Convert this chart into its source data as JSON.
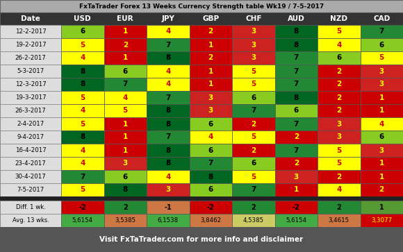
{
  "title": "FxTaTrader Forex 13 Weeks Currency Strength table Wk19 / 7-5-2017",
  "footer": "Visit FxTaTrader.com for more info and disclaimer",
  "columns": [
    "Date",
    "USD",
    "EUR",
    "JPY",
    "GBP",
    "CHF",
    "AUD",
    "NZD",
    "CAD"
  ],
  "dates": [
    "12-2-2017",
    "19-2-2017",
    "26-2-2017",
    "5-3-2017",
    "12-3-2017",
    "19-3-2017",
    "26-3-2017",
    "2-4-2017",
    "9-4-2017",
    "16-4-2017",
    "23-4-2017",
    "30-4-2017",
    "7-5-2017"
  ],
  "values": [
    [
      6,
      1,
      4,
      2,
      3,
      8,
      5,
      7
    ],
    [
      5,
      2,
      7,
      1,
      3,
      8,
      4,
      6
    ],
    [
      4,
      1,
      8,
      2,
      3,
      7,
      6,
      5
    ],
    [
      8,
      6,
      4,
      1,
      5,
      7,
      2,
      3
    ],
    [
      8,
      7,
      4,
      1,
      5,
      7,
      2,
      3
    ],
    [
      5,
      4,
      7,
      3,
      6,
      8,
      2,
      1
    ],
    [
      4,
      5,
      8,
      3,
      7,
      6,
      2,
      1
    ],
    [
      5,
      1,
      8,
      6,
      2,
      7,
      3,
      4
    ],
    [
      8,
      1,
      7,
      4,
      5,
      2,
      3,
      6
    ],
    [
      4,
      1,
      8,
      6,
      2,
      7,
      5,
      3
    ],
    [
      4,
      3,
      8,
      7,
      6,
      2,
      5,
      1
    ],
    [
      7,
      6,
      4,
      8,
      5,
      3,
      2,
      1
    ],
    [
      5,
      8,
      3,
      6,
      7,
      1,
      4,
      2
    ]
  ],
  "diff_values": [
    -2,
    2,
    -1,
    -2,
    2,
    -2,
    2,
    1
  ],
  "diff_colors": [
    "#cc0000",
    "#228833",
    "#cc7744",
    "#cc0000",
    "#228833",
    "#cc0000",
    "#228833",
    "#559933"
  ],
  "avg_values": [
    "5,6154",
    "3,5385",
    "6,1538",
    "3,8462",
    "4,5385",
    "5,6154",
    "3,4615",
    "3,3077"
  ],
  "avg_colors": [
    "#44aa44",
    "#cc7744",
    "#44aa44",
    "#cc7744",
    "#cccc66",
    "#44aa44",
    "#cc7744",
    "#cc0000"
  ],
  "bg_color": "#555555",
  "header_bg": "#333333",
  "header_text": "#ffffff",
  "title_bg": "#aaaaaa",
  "title_text": "#000000",
  "footer_bg": "#555555",
  "footer_text": "#ffffff",
  "date_col_bg": "#dddddd",
  "sep_color": "#222222"
}
